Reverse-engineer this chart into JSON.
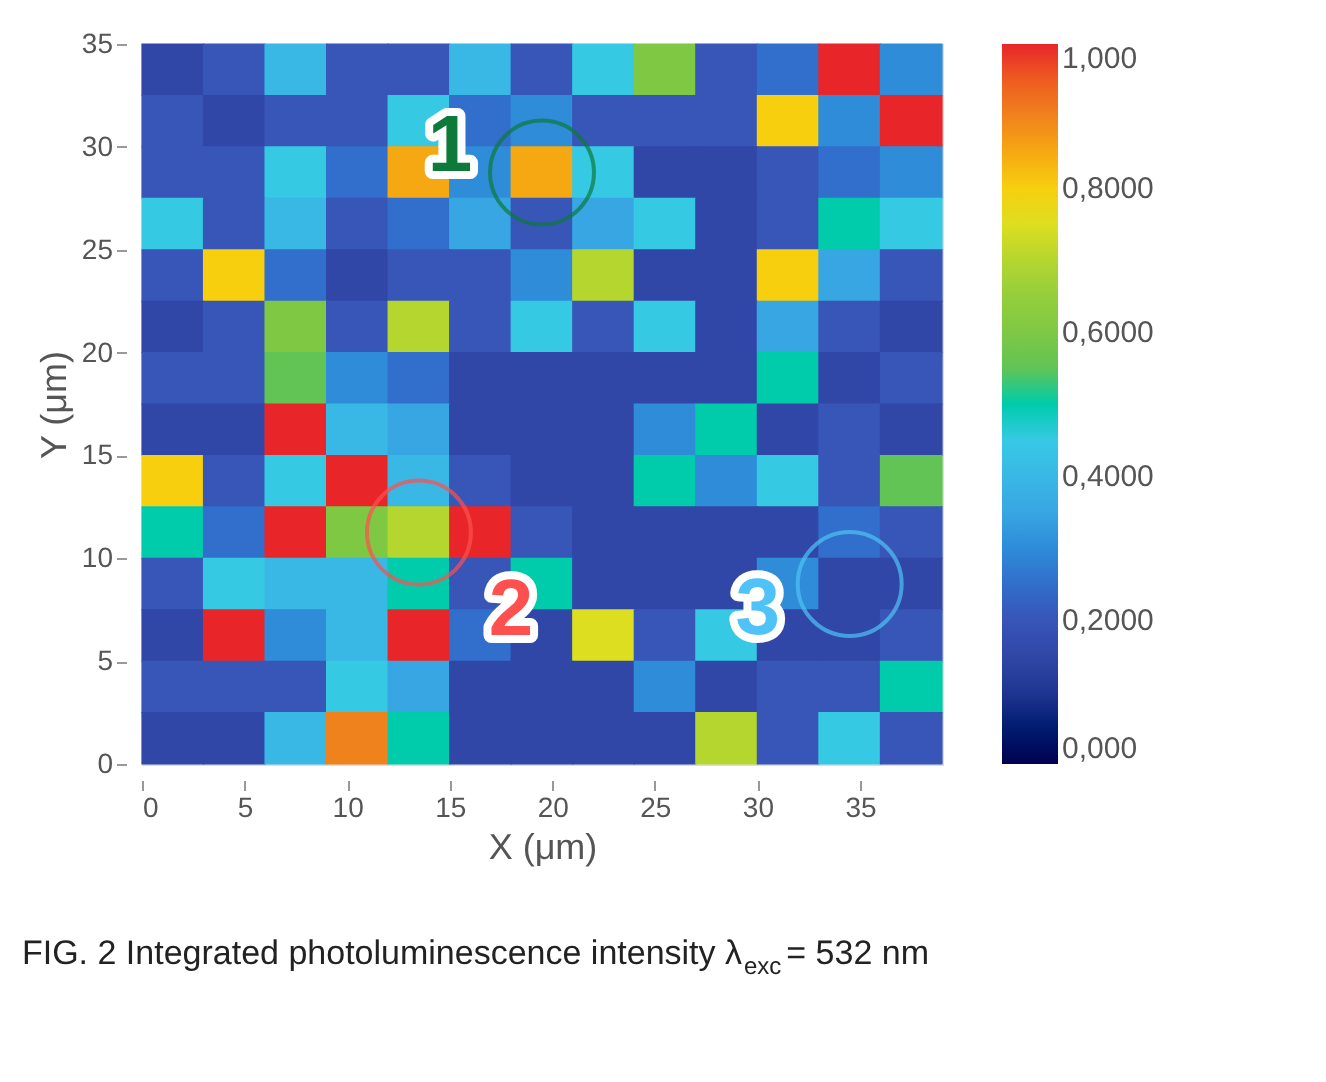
{
  "chart_data": {
    "type": "scatter",
    "xlabel": "X (μm)",
    "ylabel": "Y (μm)",
    "x": [
      1.5,
      4.5,
      7.5,
      10.5,
      13.5,
      16.5,
      19.5,
      22.5,
      25.5,
      28.5,
      31.5,
      34.5,
      37.5,
      1.5,
      4.5,
      7.5,
      10.5,
      13.5,
      16.5,
      19.5,
      22.5,
      25.5,
      28.5,
      31.5,
      34.5,
      37.5,
      1.5,
      4.5,
      7.5,
      10.5,
      13.5,
      16.5,
      19.5,
      22.5,
      25.5,
      28.5,
      31.5,
      34.5,
      37.5,
      1.5,
      4.5,
      7.5,
      10.5,
      13.5,
      16.5,
      19.5,
      22.5,
      25.5,
      28.5,
      31.5,
      34.5,
      37.5,
      1.5,
      4.5,
      7.5,
      10.5,
      13.5,
      16.5,
      19.5,
      22.5,
      25.5,
      28.5,
      31.5,
      34.5,
      37.5,
      1.5,
      4.5,
      7.5,
      10.5,
      13.5,
      16.5,
      19.5,
      22.5,
      25.5,
      28.5,
      31.5,
      34.5,
      37.5,
      1.5,
      4.5,
      7.5,
      10.5,
      13.5,
      16.5,
      19.5,
      22.5,
      25.5,
      28.5,
      31.5,
      34.5,
      37.5,
      1.5,
      4.5,
      7.5,
      10.5,
      13.5,
      16.5,
      19.5,
      22.5,
      25.5,
      28.5,
      31.5,
      34.5,
      37.5,
      1.5,
      4.5,
      7.5,
      10.5,
      13.5,
      16.5,
      19.5,
      22.5,
      25.5,
      28.5,
      31.5,
      34.5,
      37.5,
      1.5,
      4.5,
      7.5,
      10.5,
      13.5,
      16.5,
      19.5,
      22.5,
      25.5,
      28.5,
      31.5,
      34.5,
      37.5,
      1.5,
      4.5,
      7.5,
      10.5,
      13.5,
      16.5,
      19.5,
      22.5,
      25.5,
      28.5,
      31.5,
      34.5,
      37.5,
      1.5,
      4.5,
      7.5,
      10.5,
      13.5,
      16.5,
      19.5,
      22.5,
      25.5,
      28.5,
      31.5,
      34.5,
      37.5,
      1.5,
      4.5,
      7.5,
      10.5,
      13.5,
      16.5,
      19.5,
      22.5,
      25.5,
      28.5,
      31.5,
      34.5,
      37.5,
      1.5,
      4.5,
      7.5,
      10.5,
      13.5,
      16.5,
      19.5,
      22.5,
      25.5,
      28.5,
      31.5,
      34.5,
      37.5
    ],
    "values": [
      33.75,
      33.75,
      33.75,
      33.75,
      33.75,
      33.75,
      33.75,
      33.75,
      33.75,
      33.75,
      33.75,
      33.75,
      33.75,
      31.25,
      31.25,
      31.25,
      31.25,
      31.25,
      31.25,
      31.25,
      31.25,
      31.25,
      31.25,
      31.25,
      31.25,
      31.25,
      28.75,
      28.75,
      28.75,
      28.75,
      28.75,
      28.75,
      28.75,
      28.75,
      28.75,
      28.75,
      28.75,
      28.75,
      28.75,
      26.25,
      26.25,
      26.25,
      26.25,
      26.25,
      26.25,
      26.25,
      26.25,
      26.25,
      26.25,
      26.25,
      26.25,
      26.25,
      23.75,
      23.75,
      23.75,
      23.75,
      23.75,
      23.75,
      23.75,
      23.75,
      23.75,
      23.75,
      23.75,
      23.75,
      23.75,
      21.25,
      21.25,
      21.25,
      21.25,
      21.25,
      21.25,
      21.25,
      21.25,
      21.25,
      21.25,
      21.25,
      21.25,
      21.25,
      18.75,
      18.75,
      18.75,
      18.75,
      18.75,
      18.75,
      18.75,
      18.75,
      18.75,
      18.75,
      18.75,
      18.75,
      18.75,
      16.25,
      16.25,
      16.25,
      16.25,
      16.25,
      16.25,
      16.25,
      16.25,
      16.25,
      16.25,
      16.25,
      16.25,
      16.25,
      13.75,
      13.75,
      13.75,
      13.75,
      13.75,
      13.75,
      13.75,
      13.75,
      13.75,
      13.75,
      13.75,
      13.75,
      13.75,
      11.25,
      11.25,
      11.25,
      11.25,
      11.25,
      11.25,
      11.25,
      11.25,
      11.25,
      11.25,
      11.25,
      11.25,
      11.25,
      8.75,
      8.75,
      8.75,
      8.75,
      8.75,
      8.75,
      8.75,
      8.75,
      8.75,
      8.75,
      8.75,
      8.75,
      8.75,
      6.25,
      6.25,
      6.25,
      6.25,
      6.25,
      6.25,
      6.25,
      6.25,
      6.25,
      6.25,
      6.25,
      6.25,
      6.25,
      3.75,
      3.75,
      3.75,
      3.75,
      3.75,
      3.75,
      3.75,
      3.75,
      3.75,
      3.75,
      3.75,
      3.75,
      3.75,
      1.25,
      1.25,
      1.25,
      1.25,
      1.25,
      1.25,
      1.25,
      1.25,
      1.25,
      1.25,
      1.25,
      1.25,
      1.25
    ],
    "cvalues": [
      0.15,
      0.2,
      0.4,
      0.2,
      0.2,
      0.4,
      0.2,
      0.45,
      0.6,
      0.2,
      0.25,
      1,
      0.3,
      0.2,
      0.15,
      0.2,
      0.2,
      0.45,
      0.25,
      0.3,
      0.2,
      0.2,
      0.2,
      0.8,
      0.3,
      1,
      0.2,
      0.2,
      0.45,
      0.25,
      0.85,
      0.3,
      0.85,
      0.45,
      0.15,
      0.15,
      0.2,
      0.25,
      0.3,
      0.45,
      0.2,
      0.4,
      0.2,
      0.25,
      0.35,
      0.2,
      0.35,
      0.45,
      0.15,
      0.2,
      0.5,
      0.45,
      0.2,
      0.8,
      0.25,
      0.15,
      0.2,
      0.2,
      0.3,
      0.7,
      0.15,
      0.15,
      0.8,
      0.35,
      0.2,
      0.15,
      0.2,
      0.6,
      0.2,
      0.7,
      0.2,
      0.45,
      0.2,
      0.45,
      0.15,
      0.35,
      0.2,
      0.15,
      0.2,
      0.2,
      0.55,
      0.3,
      0.25,
      0.15,
      0.15,
      0.15,
      0.15,
      0.15,
      0.5,
      0.15,
      0.2,
      0.15,
      0.15,
      1,
      0.4,
      0.35,
      0.15,
      0.15,
      0.15,
      0.3,
      0.5,
      0.15,
      0.2,
      0.15,
      0.8,
      0.2,
      0.45,
      1,
      0.4,
      0.2,
      0.15,
      0.15,
      0.5,
      0.3,
      0.45,
      0.2,
      0.55,
      0.5,
      0.25,
      1,
      0.6,
      0.7,
      1,
      0.2,
      0.15,
      0.15,
      0.15,
      0.15,
      0.25,
      0.2,
      0.2,
      0.45,
      0.4,
      0.4,
      0.5,
      0.2,
      0.5,
      0.15,
      0.15,
      0.15,
      0.3,
      0.15,
      0.15,
      0.15,
      1,
      0.3,
      0.4,
      1,
      0.25,
      0.15,
      0.75,
      0.2,
      0.45,
      0.15,
      0.15,
      0.2,
      0.2,
      0.2,
      0.2,
      0.45,
      0.35,
      0.15,
      0.15,
      0.15,
      0.3,
      0.15,
      0.2,
      0.2,
      0.5,
      0.15,
      0.15,
      0.4,
      0.9,
      0.5,
      0.15,
      0.15,
      0.15,
      0.15,
      0.7,
      0.2,
      0.45,
      0.2
    ],
    "marker": "square",
    "xlim": [
      0,
      39
    ],
    "ylim": [
      0,
      35
    ],
    "xticks": [
      0,
      5,
      10,
      15,
      20,
      25,
      30,
      35
    ],
    "yticks": [
      0,
      5,
      10,
      15,
      20,
      25,
      30,
      35
    ],
    "clim": [
      0,
      1
    ],
    "cticks": [
      {
        "value": 1,
        "label": "1,000"
      },
      {
        "value": 0.8,
        "label": "0,8000"
      },
      {
        "value": 0.6,
        "label": "0,6000"
      },
      {
        "value": 0.4,
        "label": "0,4000"
      },
      {
        "value": 0.2,
        "label": "0,2000"
      },
      {
        "value": 0,
        "label": "0,000"
      }
    ],
    "annotations": [
      {
        "text": "1",
        "x": 19.5,
        "y": 28.75
      },
      {
        "text": "2",
        "x": 13.5,
        "y": 11.25
      },
      {
        "text": "3",
        "x": 34.5,
        "y": 8.75
      },
      "FIG. 2 Integrated photoluminescence intensity λ$_{exc}$= 532 nm"
    ]
  }
}
